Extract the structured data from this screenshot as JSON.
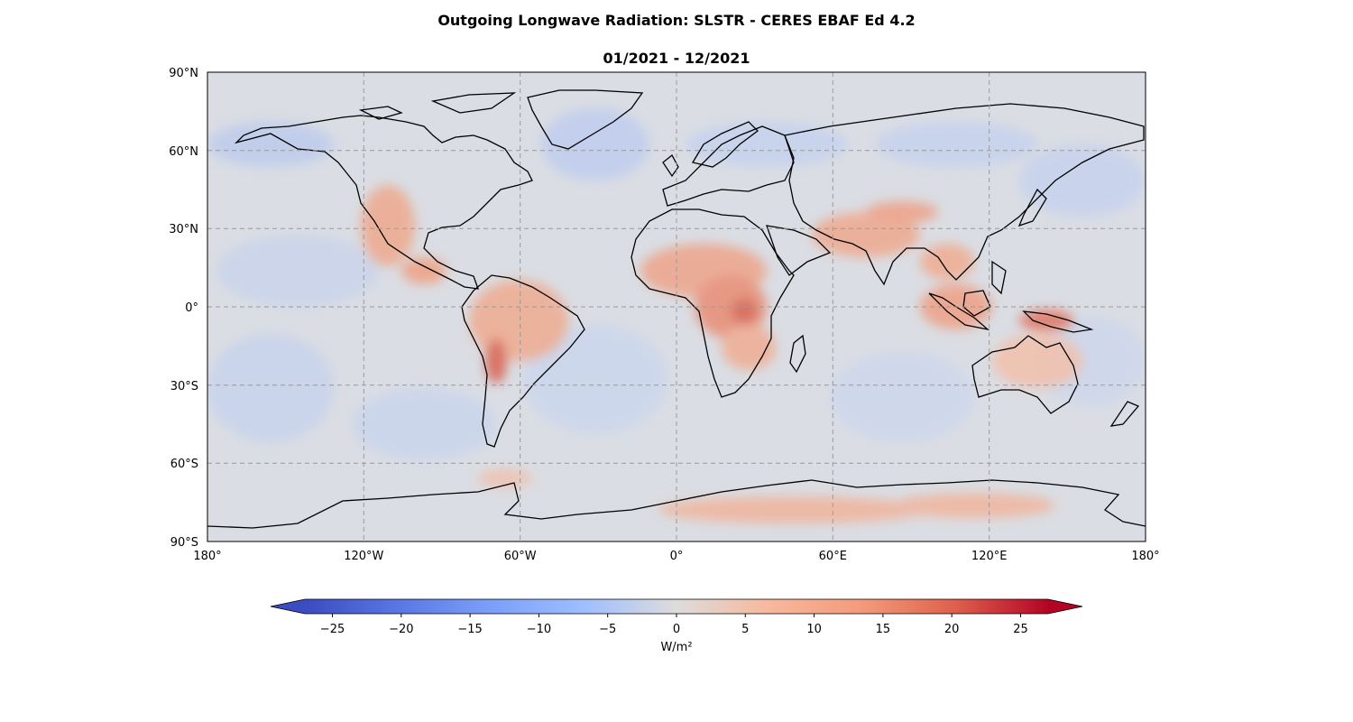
{
  "title": "Outgoing Longwave Radiation: SLSTR - CERES EBAF Ed 4.2",
  "subtitle": "01/2021 - 12/2021",
  "map": {
    "projection": "PlateCarree",
    "gridlines": "dashed gray",
    "lat_ticks": [
      "90°N",
      "60°N",
      "30°N",
      "0°",
      "30°S",
      "60°S",
      "90°S"
    ],
    "lon_ticks": [
      "180°",
      "120°W",
      "60°W",
      "0°",
      "60°E",
      "120°E",
      "180°"
    ],
    "coastlines": "black"
  },
  "colorbar": {
    "colormap": "coolwarm",
    "range": [
      -27,
      27
    ],
    "extend": "both",
    "ticks": [
      "−25",
      "−20",
      "−15",
      "−10",
      "−5",
      "0",
      "5",
      "10",
      "15",
      "20",
      "25"
    ],
    "tick_values": [
      -25,
      -20,
      -15,
      -10,
      -5,
      0,
      5,
      10,
      15,
      20,
      25
    ],
    "label": "W/m²",
    "colors": [
      "#3b4cc0",
      "#6788ee",
      "#9abbff",
      "#c9d7f0",
      "#dddcdc",
      "#f2cbb7",
      "#f7a789",
      "#e26952",
      "#b40426"
    ]
  }
}
